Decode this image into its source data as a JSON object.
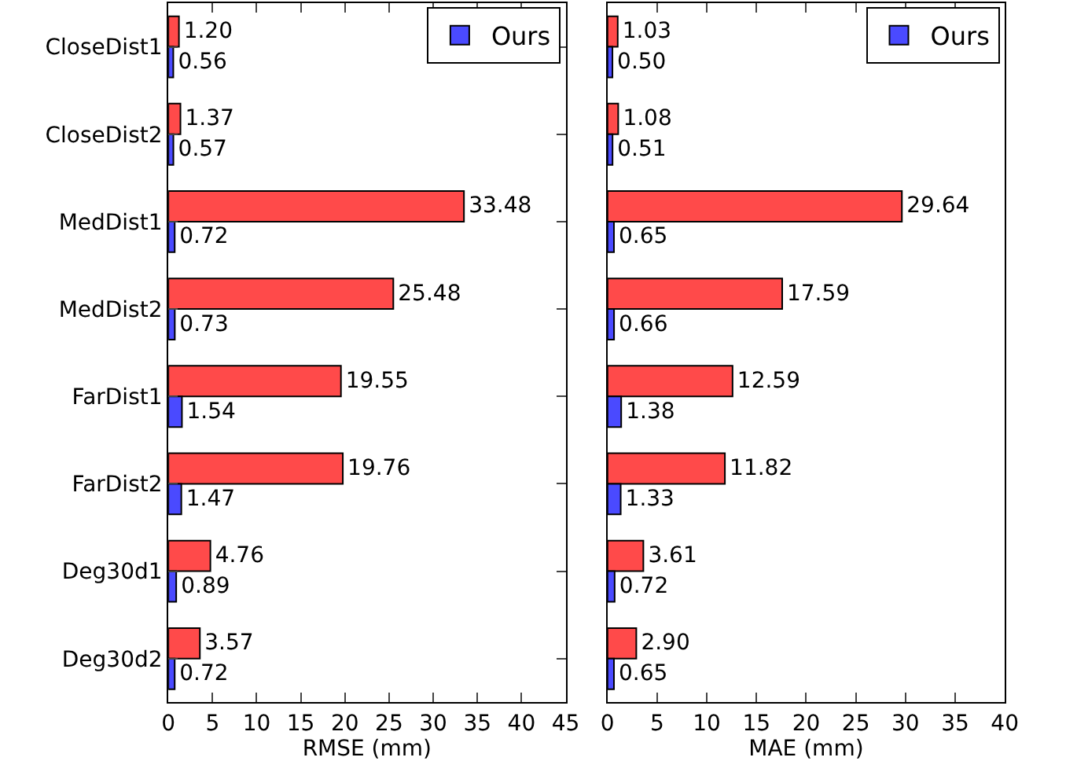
{
  "chart_data": [
    {
      "type": "bar",
      "orientation": "horizontal",
      "xlabel": "RMSE (mm)",
      "categories": [
        "CloseDist1",
        "CloseDist2",
        "MedDist1",
        "MedDist2",
        "FarDist1",
        "FarDist2",
        "Deg30d1",
        "Deg30d2"
      ],
      "xlim": [
        0,
        45
      ],
      "xticks": [
        0,
        5,
        10,
        15,
        20,
        25,
        30,
        35,
        40,
        45
      ],
      "legend": "top right",
      "series": [
        {
          "color": "#ff4a4a",
          "values": [
            1.2,
            1.37,
            33.48,
            25.48,
            19.55,
            19.76,
            4.76,
            3.57
          ],
          "value_labels": [
            "1.20",
            "1.37",
            "33.48",
            "25.48",
            "19.55",
            "19.76",
            "4.76",
            "3.57"
          ]
        },
        {
          "name": "Ours",
          "color": "#4a4aff",
          "values": [
            0.56,
            0.57,
            0.72,
            0.73,
            1.54,
            1.47,
            0.89,
            0.72
          ],
          "value_labels": [
            "0.56",
            "0.57",
            "0.72",
            "0.73",
            "1.54",
            "1.47",
            "0.89",
            "0.72"
          ]
        }
      ]
    },
    {
      "type": "bar",
      "orientation": "horizontal",
      "xlabel": "MAE (mm)",
      "categories": [
        null,
        null,
        null,
        null,
        null,
        null,
        null,
        null
      ],
      "xlim": [
        0,
        40
      ],
      "xticks": [
        0,
        5,
        10,
        15,
        20,
        25,
        30,
        35,
        40
      ],
      "legend": "top right",
      "tick_labels": "x",
      "series": [
        {
          "color": "#ff4a4a",
          "values": [
            1.03,
            1.08,
            29.64,
            17.59,
            12.59,
            11.82,
            3.61,
            2.9
          ],
          "value_labels": [
            "1.03",
            "1.08",
            "29.64",
            "17.59",
            "12.59",
            "11.82",
            "3.61",
            "2.90"
          ]
        },
        {
          "name": "Ours",
          "color": "#4a4aff",
          "values": [
            0.5,
            0.51,
            0.65,
            0.66,
            1.38,
            1.33,
            0.72,
            0.65
          ],
          "value_labels": [
            "0.50",
            "0.51",
            "0.65",
            "0.66",
            "1.38",
            "1.33",
            "0.72",
            "0.65"
          ]
        }
      ]
    }
  ]
}
